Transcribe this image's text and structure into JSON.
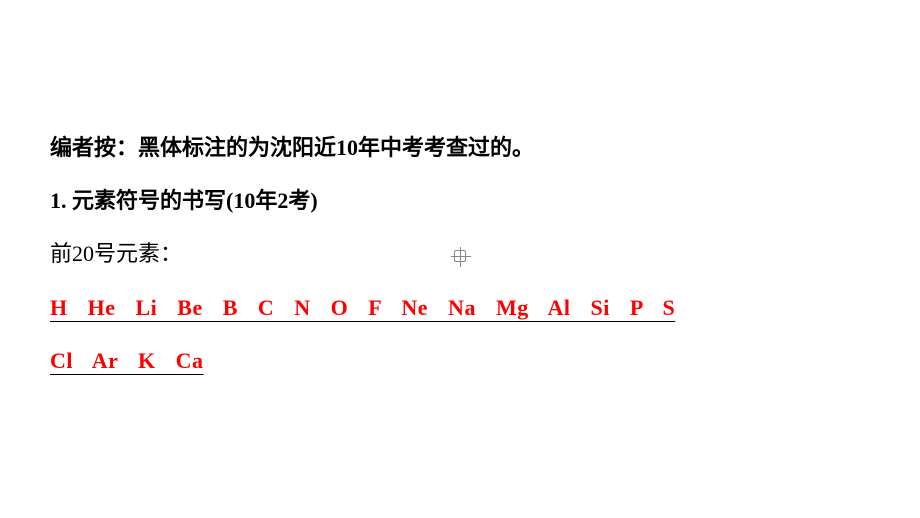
{
  "editor_note": {
    "prefix": "编者按：",
    "text": "黑体标注的为沈阳近10年中考考查过的。"
  },
  "heading": {
    "number": "1. ",
    "title": "元素符号的书写",
    "suffix": "(10年2考)"
  },
  "subheading": "前20号元素：",
  "elements_row1": "H He Li Be B C N O F Ne Na Mg Al Si P S",
  "elements_row2": "Cl Ar K Ca",
  "colors": {
    "text": "#000000",
    "elements": "#ff0000",
    "underline": "#000000",
    "background": "#ffffff"
  },
  "typography": {
    "body_fontsize": 22,
    "line_spacing": 18,
    "element_word_spacing": 14
  }
}
